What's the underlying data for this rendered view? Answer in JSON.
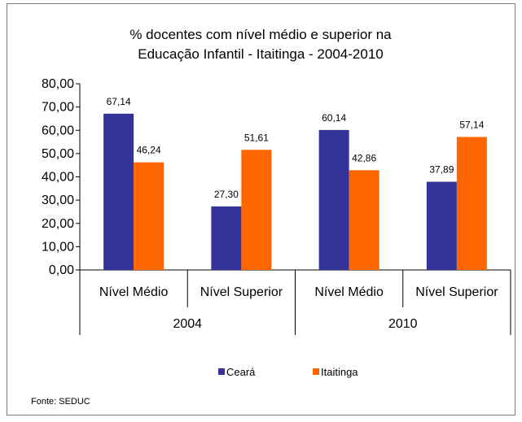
{
  "chart_data": {
    "type": "bar",
    "title_lines": [
      "% docentes com nível médio e superior na",
      "Educação Infantil - Itaitinga - 2004-2010"
    ],
    "groups": [
      "2004",
      "2010"
    ],
    "categories": [
      "Nível Médio",
      "Nível Superior",
      "Nível Médio",
      "Nível Superior"
    ],
    "series": [
      {
        "name": "Ceará",
        "color": "#333399",
        "values": [
          67.14,
          27.3,
          60.14,
          37.89
        ],
        "labels": [
          "67,14",
          "27,30",
          "60,14",
          "37,89"
        ]
      },
      {
        "name": "Itaitinga",
        "color": "#ff6600",
        "values": [
          46.24,
          51.61,
          42.86,
          57.14
        ],
        "labels": [
          "46,24",
          "51,61",
          "42,86",
          "57,14"
        ]
      }
    ],
    "ylim": [
      0,
      80
    ],
    "yticks": [
      0,
      10,
      20,
      30,
      40,
      50,
      60,
      70,
      80
    ],
    "ytick_labels": [
      "0,00",
      "10,00",
      "20,00",
      "30,00",
      "40,00",
      "50,00",
      "60,00",
      "70,00",
      "80,00"
    ],
    "legend_position": "bottom",
    "grid": false
  },
  "source": "Fonte: SEDUC"
}
